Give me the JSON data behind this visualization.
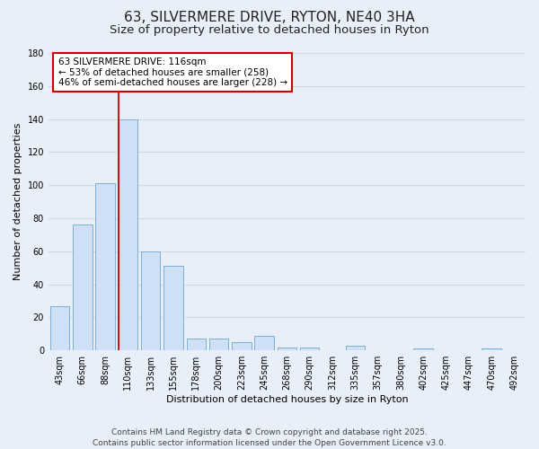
{
  "title": "63, SILVERMERE DRIVE, RYTON, NE40 3HA",
  "subtitle": "Size of property relative to detached houses in Ryton",
  "xlabel": "Distribution of detached houses by size in Ryton",
  "ylabel": "Number of detached properties",
  "bar_color": "#cfdff5",
  "bar_edge_color": "#7bafd4",
  "background_color": "#e8eff8",
  "grid_color": "#d0d8e8",
  "categories": [
    "43sqm",
    "66sqm",
    "88sqm",
    "110sqm",
    "133sqm",
    "155sqm",
    "178sqm",
    "200sqm",
    "223sqm",
    "245sqm",
    "268sqm",
    "290sqm",
    "312sqm",
    "335sqm",
    "357sqm",
    "380sqm",
    "402sqm",
    "425sqm",
    "447sqm",
    "470sqm",
    "492sqm"
  ],
  "values": [
    27,
    76,
    101,
    140,
    60,
    51,
    7,
    7,
    5,
    9,
    2,
    2,
    0,
    3,
    0,
    0,
    1,
    0,
    0,
    1,
    0
  ],
  "ylim": [
    0,
    180
  ],
  "yticks": [
    0,
    20,
    40,
    60,
    80,
    100,
    120,
    140,
    160,
    180
  ],
  "vline_index": 3,
  "vline_color": "#cc0000",
  "annotation_line1": "63 SILVERMERE DRIVE: 116sqm",
  "annotation_line2": "← 53% of detached houses are smaller (258)",
  "annotation_line3": "46% of semi-detached houses are larger (228) →",
  "annotation_box_color": "#ffffff",
  "annotation_box_edge_color": "#cc0000",
  "footer_line1": "Contains HM Land Registry data © Crown copyright and database right 2025.",
  "footer_line2": "Contains public sector information licensed under the Open Government Licence v3.0.",
  "title_fontsize": 11,
  "subtitle_fontsize": 9.5,
  "axis_label_fontsize": 8,
  "tick_fontsize": 7,
  "annotation_fontsize": 7.5,
  "footer_fontsize": 6.5
}
